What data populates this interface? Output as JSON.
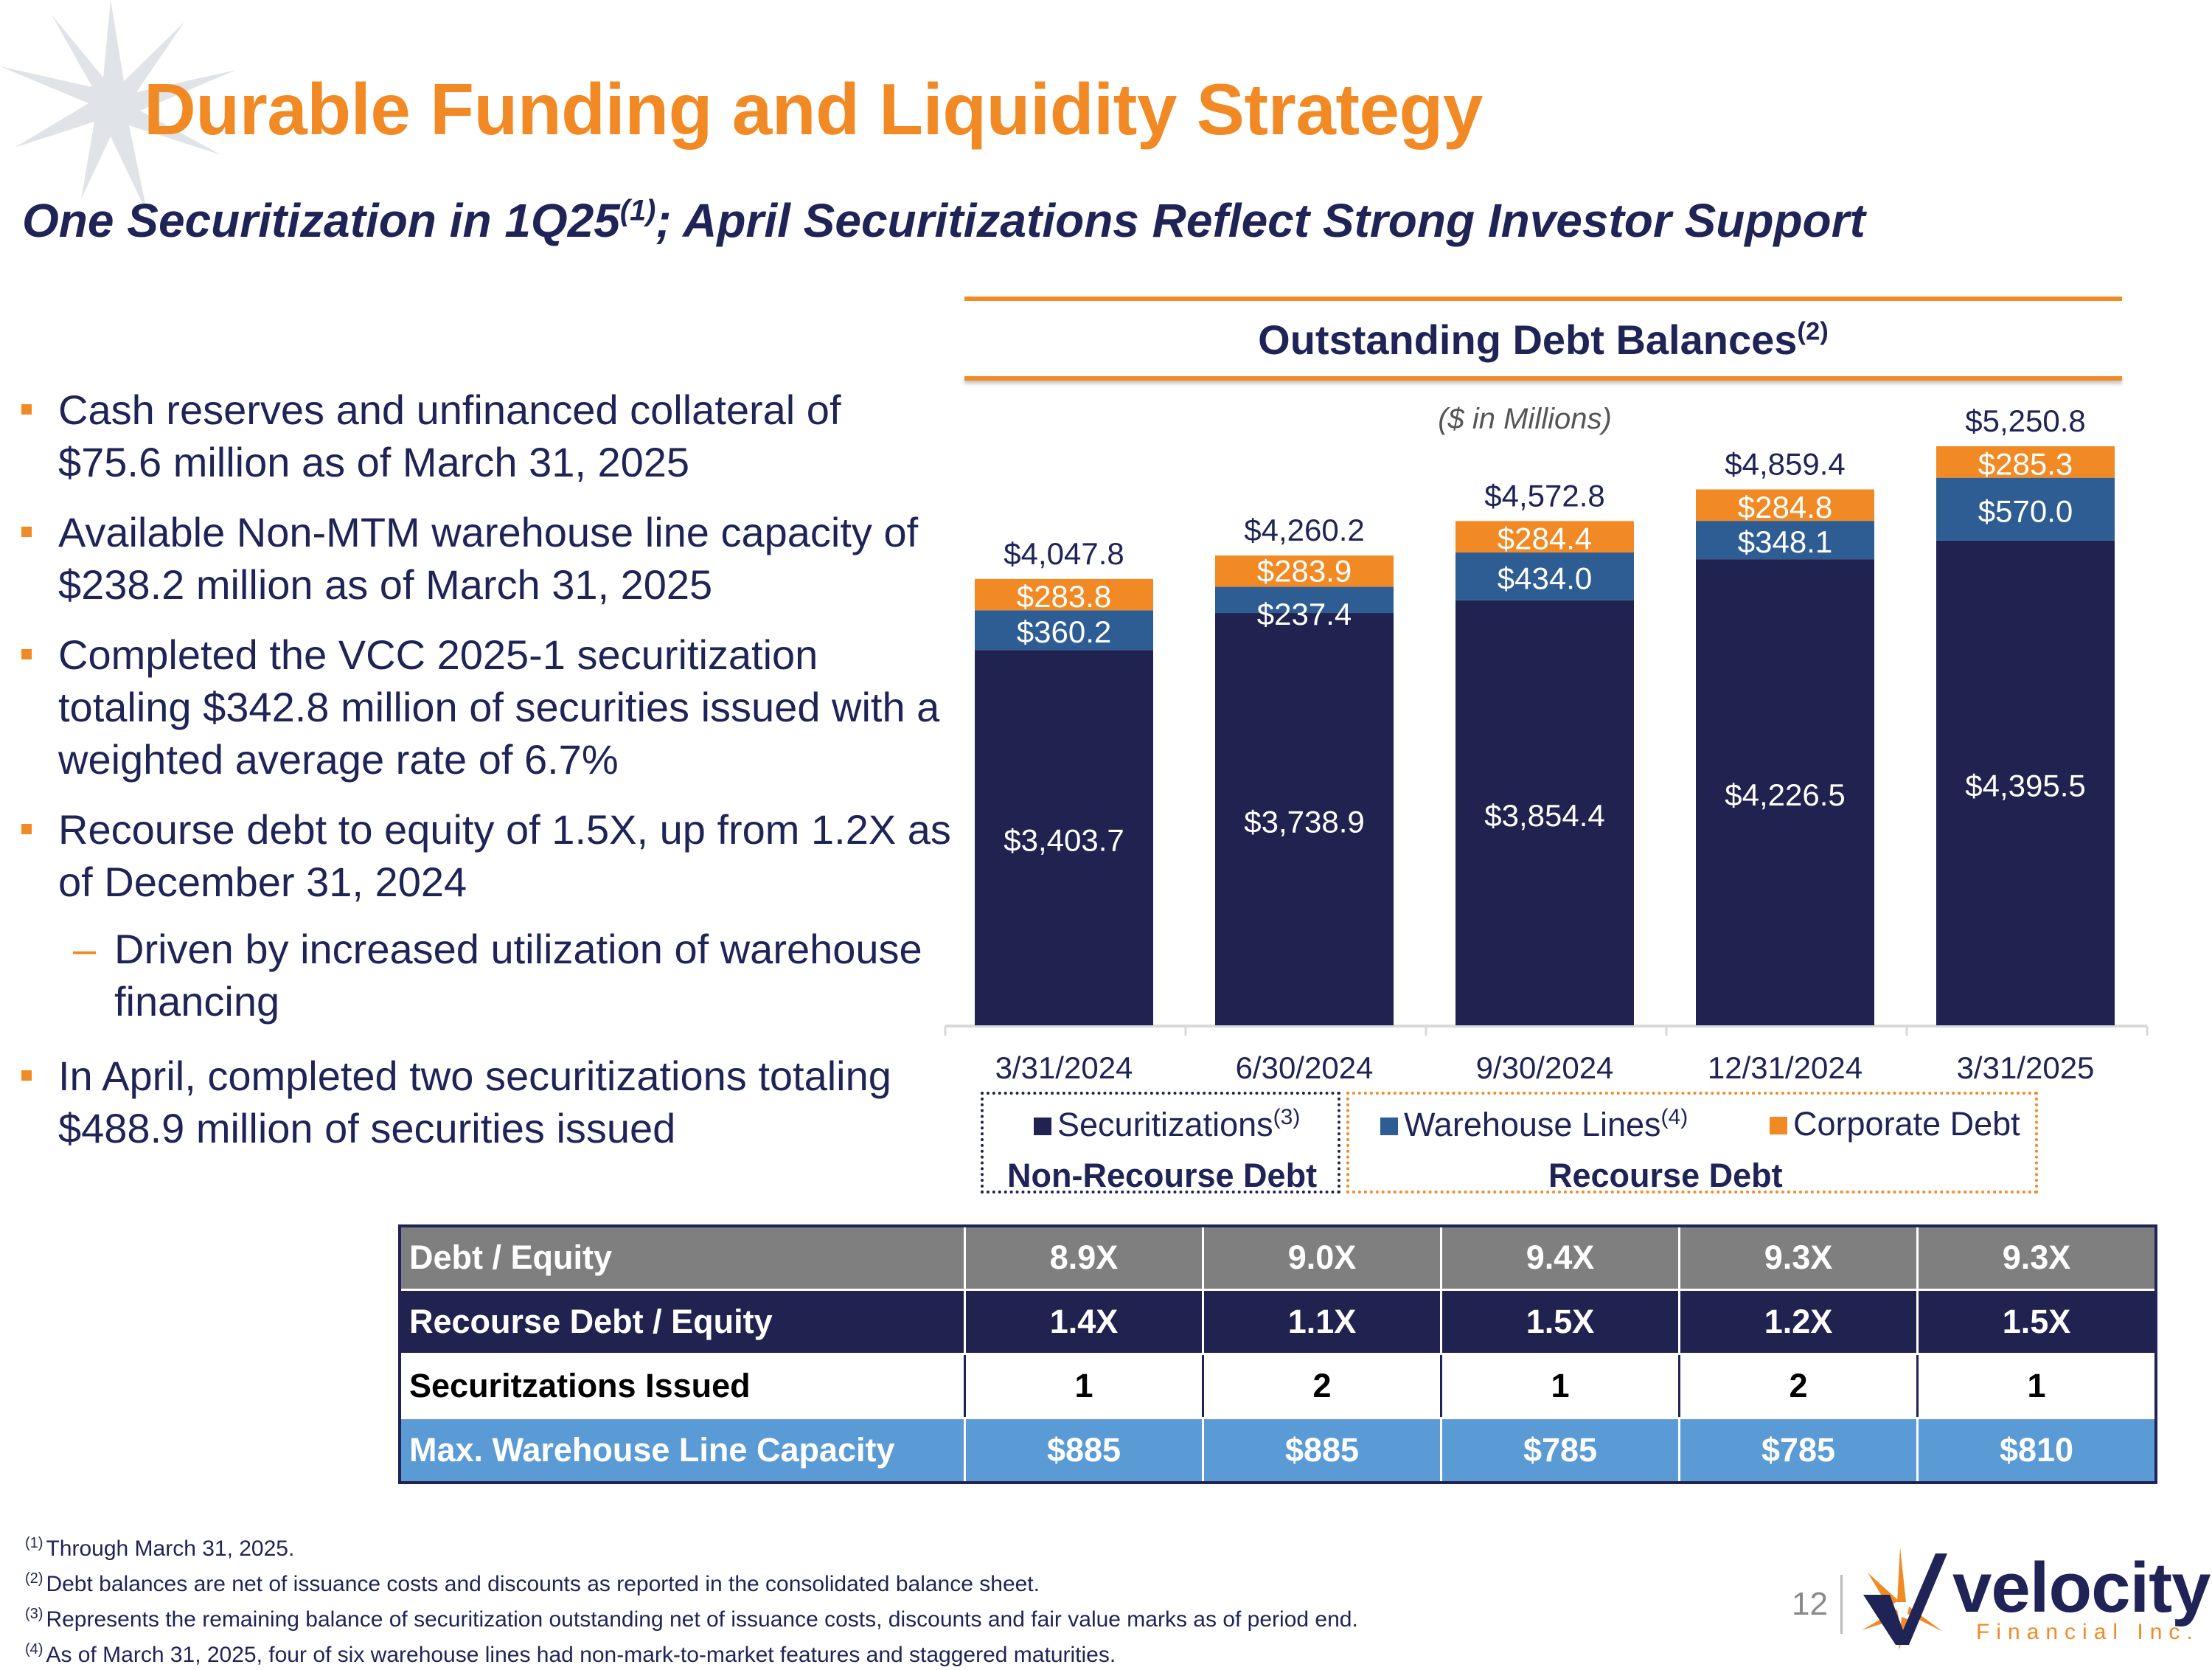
{
  "title": "Durable Funding and Liquidity Strategy",
  "subtitle": {
    "text_a": "One Securitization in 1Q25",
    "sup": "(1)",
    "text_b": "; April Securitizations Reflect Strong Investor Support"
  },
  "bullets": [
    {
      "text": "Cash reserves and unfinanced collateral of $75.6 million as of March 31, 2025",
      "level": 1
    },
    {
      "text": "Available Non-MTM warehouse line capacity of $238.2 million as of March 31, 2025",
      "level": 1
    },
    {
      "text": "Completed the VCC 2025-1 securitization totaling $342.8 million of securities issued with a weighted average rate of 6.7%",
      "level": 1
    },
    {
      "text": "Recourse debt to equity of 1.5X, up from 1.2X as of December 31, 2024",
      "level": 1
    },
    {
      "text": "Driven by increased utilization of warehouse financing",
      "level": 2,
      "marker": "–"
    },
    {
      "text": "In April, completed two securitizations totaling $488.9 million of securities issued",
      "level": 1
    }
  ],
  "chart_head": {
    "text": "Outstanding Debt Balances",
    "sup": "(2)"
  },
  "chart_sub": "($ in Millions)",
  "chart_data": {
    "type": "bar",
    "stacked": true,
    "title": "Outstanding Debt Balances",
    "subtitle": "($ in Millions)",
    "categories": [
      "3/31/2024",
      "6/30/2024",
      "9/30/2024",
      "12/31/2024",
      "3/31/2025"
    ],
    "series": [
      {
        "name": "Securitizations",
        "color": "#20234f",
        "values": [
          3403.7,
          3738.9,
          3854.4,
          4226.5,
          4395.5
        ],
        "labels": [
          "$3,403.7",
          "$3,738.9",
          "$3,854.4",
          "$4,226.5",
          "$4,395.5"
        ]
      },
      {
        "name": "Warehouse Lines",
        "color": "#2e5d94",
        "values": [
          360.2,
          237.4,
          434.0,
          348.1,
          570.0
        ],
        "labels": [
          "$360.2",
          "$237.4",
          "$434.0",
          "$348.1",
          "$570.0"
        ]
      },
      {
        "name": "Corporate Debt",
        "color": "#f18a24",
        "values": [
          283.8,
          283.9,
          284.4,
          284.8,
          285.3
        ],
        "labels": [
          "$283.8",
          "$283.9",
          "$284.4",
          "$284.8",
          "$285.3"
        ]
      }
    ],
    "totals": [
      4047.8,
      4260.2,
      4572.8,
      4859.4,
      5250.8
    ],
    "total_labels": [
      "$4,047.8",
      "$4,260.2",
      "$4,572.8",
      "$4,859.4",
      "$5,250.8"
    ],
    "ylim": [
      0,
      5400
    ],
    "grid": false,
    "legend": "bottom"
  },
  "legend": {
    "items": [
      {
        "label": "Securitizations",
        "sup": "(3)",
        "color": "#20234f"
      },
      {
        "label": "Warehouse Lines",
        "sup": "(4)",
        "color": "#2e5d94"
      },
      {
        "label": "Corporate Debt",
        "sup": "",
        "color": "#f18a24"
      }
    ],
    "group_left": "Non-Recourse Debt",
    "group_right": "Recourse Debt"
  },
  "ratios": [
    {
      "label": "Debt / Equity",
      "values": [
        "8.9X",
        "9.0X",
        "9.4X",
        "9.3X",
        "9.3X"
      ]
    },
    {
      "label": "Recourse Debt / Equity",
      "values": [
        "1.4X",
        "1.1X",
        "1.5X",
        "1.2X",
        "1.5X"
      ]
    },
    {
      "label": "Securitzations Issued",
      "values": [
        "1",
        "2",
        "1",
        "2",
        "1"
      ]
    },
    {
      "label": "Max. Warehouse Line Capacity",
      "values": [
        "$885",
        "$885",
        "$785",
        "$785",
        "$810"
      ]
    }
  ],
  "footnotes": [
    {
      "sup": "(1)",
      "text": "Through March 31, 2025."
    },
    {
      "sup": "(2)",
      "text": "Debt balances are net of issuance costs and discounts as reported in the consolidated balance sheet."
    },
    {
      "sup": "(3)",
      "text": "Represents the remaining balance of securitization outstanding net of issuance costs, discounts and fair value marks as of period end."
    },
    {
      "sup": "(4)",
      "text": "As of March 31, 2025, four of six warehouse lines had non-mark-to-market features and staggered maturities."
    }
  ],
  "page_number": "12",
  "logo": {
    "word": "velocity",
    "sub": "Financial Inc."
  },
  "colors": {
    "accent": "#f18a24",
    "navy": "#20234f",
    "blue": "#2e5d94",
    "light_blue": "#5b9bd5",
    "gray": "#7f7f7f"
  }
}
